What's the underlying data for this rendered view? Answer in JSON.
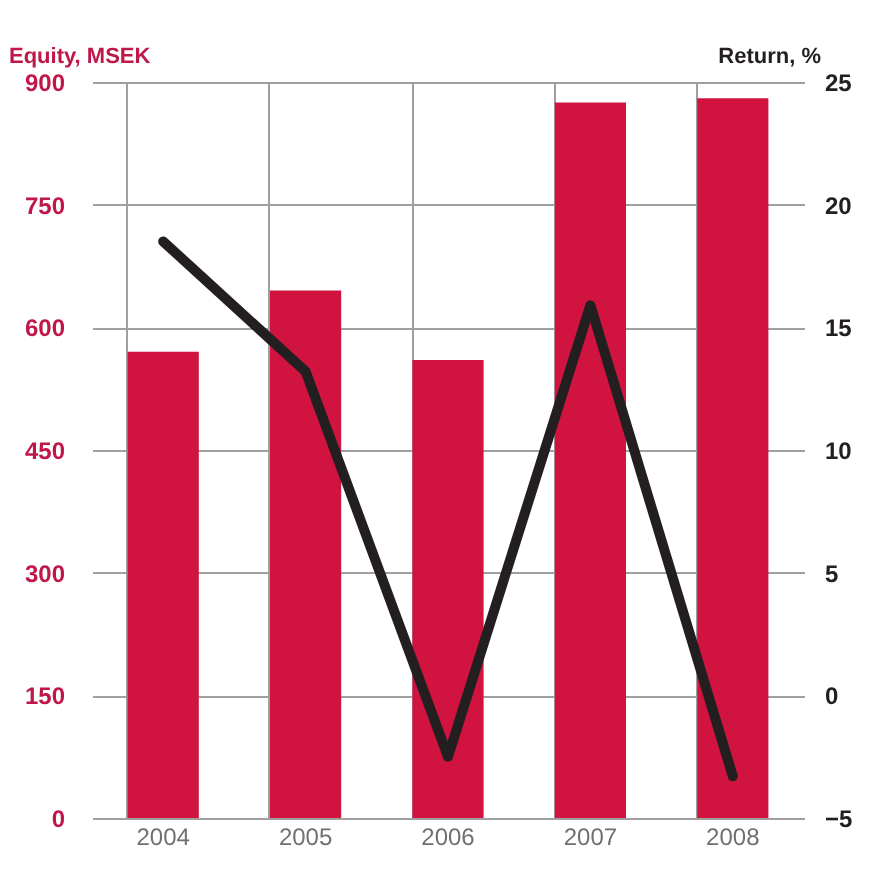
{
  "chart_data": {
    "type": "bar",
    "ylabel": "Equity, MSEK",
    "y2label": "Return, %",
    "categories": [
      "2004",
      "2005",
      "2006",
      "2007",
      "2008"
    ],
    "series": [
      {
        "color": "#d0143f",
        "values": [
          570,
          645,
          560,
          875,
          880
        ]
      },
      {
        "type": "line",
        "axis": "y2",
        "color": "#231f20",
        "values": [
          18.5,
          13.2,
          -2.5,
          15.9,
          -3.3
        ]
      }
    ],
    "ylim": [
      0,
      900
    ],
    "yticks": [
      0,
      150,
      300,
      450,
      600,
      750,
      900
    ],
    "y2lim": [
      -5,
      25
    ],
    "y2ticks": [
      -5,
      0,
      5,
      10,
      15,
      20,
      25
    ],
    "grid": true
  }
}
